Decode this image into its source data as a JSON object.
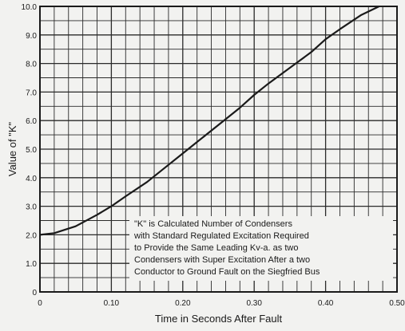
{
  "chart_data": {
    "type": "line",
    "title": "",
    "xlabel": "Time in Seconds After Fault",
    "ylabel": "Value of \"K\"",
    "xlim": [
      0,
      0.5
    ],
    "ylim": [
      0,
      10
    ],
    "x_ticks": [
      "0",
      "0.10",
      "0.20",
      "0.30",
      "0.40",
      "0.50"
    ],
    "y_ticks": [
      "0",
      "1.0",
      "2.0",
      "3.0",
      "4.0",
      "5.0",
      "6.0",
      "7.0",
      "8.0",
      "9.0",
      "10.0"
    ],
    "grid": true,
    "series": [
      {
        "x": [
          0.0,
          0.02,
          0.05,
          0.08,
          0.1,
          0.12,
          0.15,
          0.18,
          0.2,
          0.22,
          0.25,
          0.28,
          0.3,
          0.32,
          0.35,
          0.38,
          0.4,
          0.42,
          0.45,
          0.475
        ],
        "y": [
          2.0,
          2.06,
          2.3,
          2.7,
          3.0,
          3.35,
          3.85,
          4.45,
          4.85,
          5.25,
          5.85,
          6.45,
          6.9,
          7.3,
          7.85,
          8.4,
          8.85,
          9.2,
          9.7,
          10.0
        ]
      }
    ],
    "annotation": [
      "\"K\" is Calculated Number of Condensers",
      "with Standard Regulated Excitation Required",
      "to Provide the Same Leading Kv-a. as two",
      "Condensers with Super Excitation After a two",
      "Conductor to Ground Fault on the Siegfried Bus"
    ],
    "colors": {
      "line": "#1a1a1a",
      "grid": "#2a2a2a",
      "background": "#f2f2f0"
    }
  }
}
